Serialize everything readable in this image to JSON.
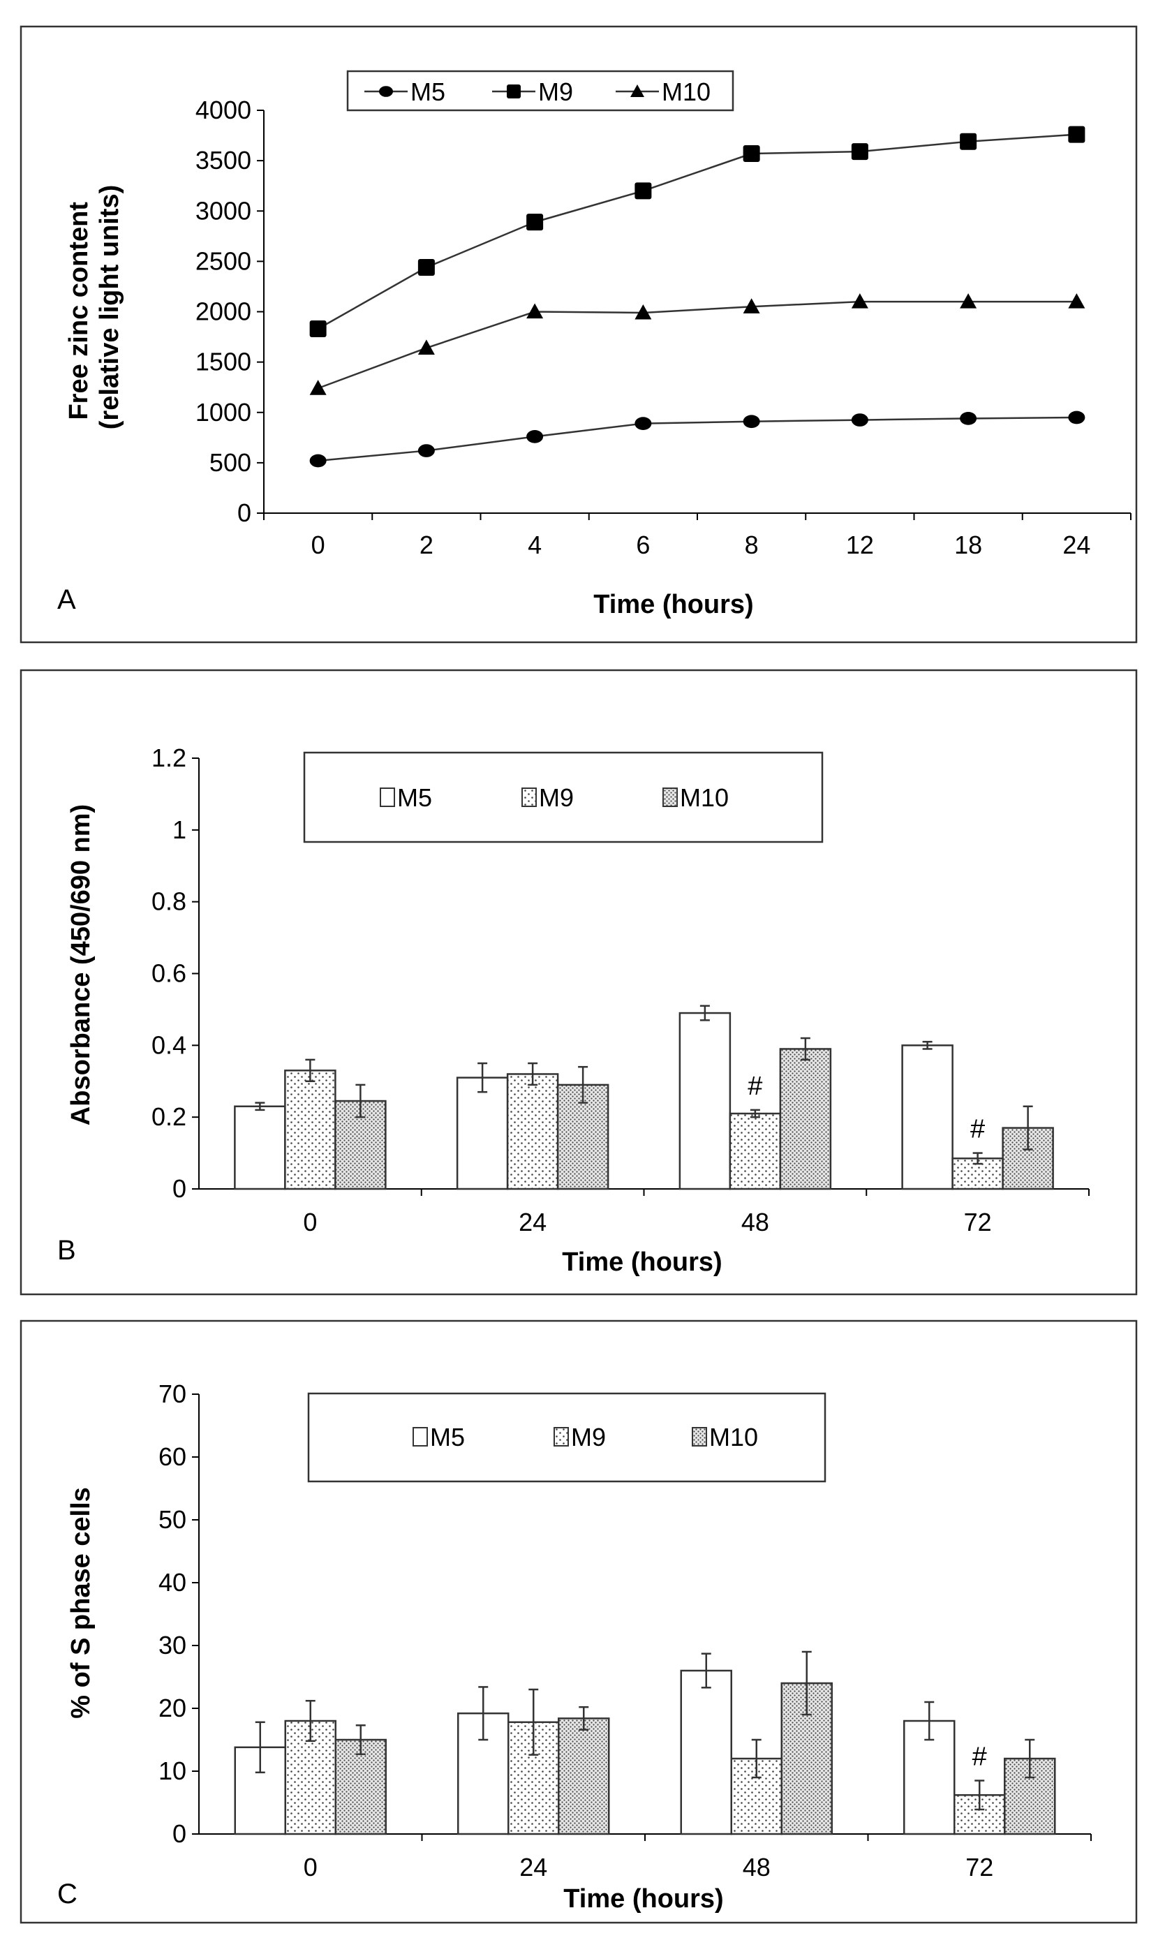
{
  "chart_data": [
    {
      "panel": "A",
      "type": "line",
      "categories": [
        "0",
        "2",
        "4",
        "6",
        "8",
        "12",
        "18",
        "24"
      ],
      "series": [
        {
          "name": "M5",
          "marker": "diamond",
          "values": [
            520,
            620,
            760,
            890,
            910,
            925,
            940,
            950
          ],
          "errors": [
            30,
            30,
            30,
            30,
            20,
            20,
            20,
            20
          ]
        },
        {
          "name": "M9",
          "marker": "square",
          "values": [
            1830,
            2440,
            2890,
            3200,
            3570,
            3590,
            3690,
            3760
          ],
          "errors": [
            20,
            20,
            20,
            20,
            20,
            20,
            20,
            20
          ]
        },
        {
          "name": "M10",
          "marker": "triangle",
          "values": [
            1240,
            1640,
            2000,
            1990,
            2050,
            2100,
            2100,
            2100
          ],
          "errors": [
            20,
            20,
            20,
            20,
            20,
            20,
            20,
            20
          ]
        }
      ],
      "ylabel_line1": "Free zinc content",
      "ylabel_line2": "(relative light units)",
      "xlabel": "Time (hours)",
      "ylim": [
        0,
        4000
      ],
      "yticks": [
        "0",
        "500",
        "1000",
        "1500",
        "2000",
        "2500",
        "3000",
        "3500",
        "4000"
      ],
      "legend": [
        "M5",
        "M9",
        "M10"
      ],
      "legend_position": "top-left"
    },
    {
      "panel": "B",
      "type": "bar",
      "categories": [
        "0",
        "24",
        "48",
        "72"
      ],
      "series": [
        {
          "name": "M5",
          "pattern": "white",
          "values": [
            0.23,
            0.31,
            0.49,
            0.4
          ],
          "errors": [
            0.01,
            0.04,
            0.02,
            0.01
          ]
        },
        {
          "name": "M9",
          "pattern": "sparse-dots",
          "values": [
            0.33,
            0.32,
            0.21,
            0.085
          ],
          "errors": [
            0.03,
            0.03,
            0.01,
            0.015
          ]
        },
        {
          "name": "M10",
          "pattern": "dense-dots",
          "values": [
            0.245,
            0.29,
            0.39,
            0.17
          ],
          "errors": [
            0.045,
            0.05,
            0.03,
            0.06
          ]
        }
      ],
      "annotations": [
        {
          "category": "48",
          "series": "M9",
          "text": "#"
        },
        {
          "category": "72",
          "series": "M9",
          "text": "#"
        }
      ],
      "ylabel": "Absorbance (450/690 nm)",
      "xlabel": "Time (hours)",
      "ylim": [
        0,
        1.2
      ],
      "yticks": [
        "0",
        "0.2",
        "0.4",
        "0.6",
        "0.8",
        "1",
        "1.2"
      ],
      "legend": [
        "M5",
        "M9",
        "M10"
      ],
      "legend_position": "top"
    },
    {
      "panel": "C",
      "type": "bar",
      "categories": [
        "0",
        "24",
        "48",
        "72"
      ],
      "series": [
        {
          "name": "M5",
          "pattern": "white",
          "values": [
            13.8,
            19.2,
            26.0,
            18.0
          ],
          "errors": [
            4.0,
            4.2,
            2.7,
            3.0
          ]
        },
        {
          "name": "M9",
          "pattern": "sparse-dots",
          "values": [
            18.0,
            17.8,
            12.0,
            6.2
          ],
          "errors": [
            3.2,
            5.2,
            3.0,
            2.3
          ]
        },
        {
          "name": "M10",
          "pattern": "dense-dots",
          "values": [
            15.0,
            18.4,
            24.0,
            12.0
          ],
          "errors": [
            2.3,
            1.8,
            5.0,
            3.0
          ]
        }
      ],
      "annotations": [
        {
          "category": "72",
          "series": "M9",
          "text": "#"
        }
      ],
      "ylabel": "% of S phase cells",
      "xlabel": "Time (hours)",
      "ylim": [
        0,
        70
      ],
      "yticks": [
        "0",
        "10",
        "20",
        "30",
        "40",
        "50",
        "60",
        "70"
      ],
      "legend": [
        "M5",
        "M9",
        "M10"
      ],
      "legend_position": "top"
    }
  ]
}
